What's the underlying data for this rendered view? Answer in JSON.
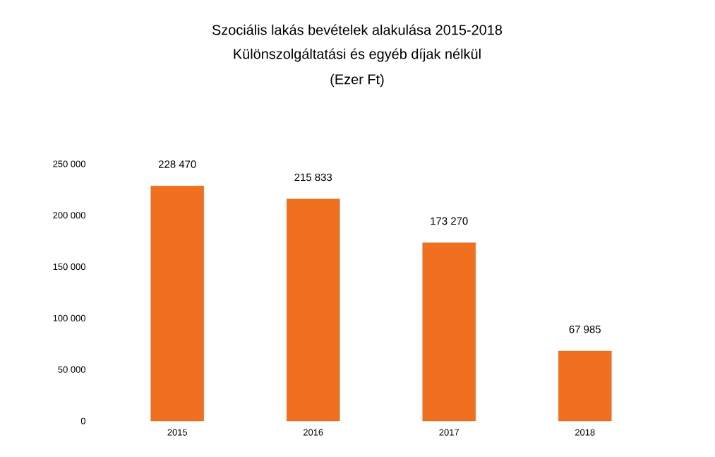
{
  "chart_data": {
    "type": "bar",
    "title": "Szociális lakás bevételek alakulása 2015-2018",
    "subtitle": "Különszolgáltatási és egyéb díjak nélkül",
    "annotations": [
      "(Ezer Ft)"
    ],
    "categories": [
      "2015",
      "2016",
      "2017",
      "2018"
    ],
    "values": [
      228470,
      215833,
      173270,
      67985
    ],
    "value_labels": [
      "228 470",
      "215 833",
      "173 270",
      "67 985"
    ],
    "color": "#f07020",
    "ylim": [
      0,
      250000
    ],
    "yticks": [
      {
        "value": 0,
        "label": "0"
      },
      {
        "value": 50000,
        "label": "50 000"
      },
      {
        "value": 100000,
        "label": "100 000"
      },
      {
        "value": 150000,
        "label": "150 000"
      },
      {
        "value": 200000,
        "label": "200 000"
      },
      {
        "value": 250000,
        "label": "250 000"
      }
    ],
    "grid": false
  }
}
